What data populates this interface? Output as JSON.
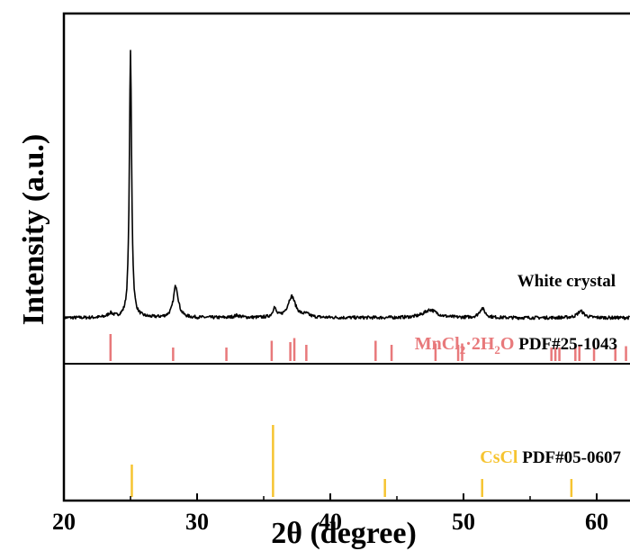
{
  "chart_data": {
    "type": "line",
    "xlabel": "2θ (degree)",
    "ylabel": "Intensity (a.u.)",
    "xlim": [
      20,
      62.5
    ],
    "x_ticks": [
      20,
      30,
      40,
      50,
      60
    ],
    "x_tick_labels": [
      "20",
      "30",
      "40",
      "50",
      "60"
    ],
    "grid": false,
    "series": [
      {
        "name": "White crystal",
        "baseline": 0.05,
        "noise": 0.006,
        "peaks": [
          {
            "x": 23.5,
            "h": 0.015,
            "w": 0.25
          },
          {
            "x": 25.0,
            "h": 1.0,
            "w": 0.1
          },
          {
            "x": 28.4,
            "h": 0.12,
            "w": 0.22
          },
          {
            "x": 33.0,
            "h": 0.008,
            "w": 0.3
          },
          {
            "x": 35.8,
            "h": 0.035,
            "w": 0.15
          },
          {
            "x": 37.1,
            "h": 0.08,
            "w": 0.35
          },
          {
            "x": 38.2,
            "h": 0.01,
            "w": 0.3
          },
          {
            "x": 47.5,
            "h": 0.03,
            "w": 0.6
          },
          {
            "x": 51.4,
            "h": 0.035,
            "w": 0.25
          },
          {
            "x": 58.8,
            "h": 0.025,
            "w": 0.3
          }
        ]
      }
    ],
    "references": [
      {
        "name_parts": [
          {
            "text": "MnCl",
            "sub": false
          },
          {
            "text": "2",
            "sub": true
          },
          {
            "text": "·2H",
            "sub": false
          },
          {
            "text": "2",
            "sub": true
          },
          {
            "text": "O",
            "sub": false
          }
        ],
        "pdf": "PDF#25-1043",
        "color": "#e8797b",
        "lines": [
          {
            "x": 23.5,
            "h": 1.0
          },
          {
            "x": 28.2,
            "h": 0.5
          },
          {
            "x": 32.2,
            "h": 0.5
          },
          {
            "x": 35.6,
            "h": 0.75
          },
          {
            "x": 37.0,
            "h": 0.7
          },
          {
            "x": 37.3,
            "h": 0.85
          },
          {
            "x": 38.2,
            "h": 0.6
          },
          {
            "x": 43.4,
            "h": 0.75
          },
          {
            "x": 44.6,
            "h": 0.6
          },
          {
            "x": 47.9,
            "h": 0.65
          },
          {
            "x": 49.6,
            "h": 0.6
          },
          {
            "x": 49.9,
            "h": 0.65
          },
          {
            "x": 56.6,
            "h": 0.5
          },
          {
            "x": 56.9,
            "h": 0.5
          },
          {
            "x": 57.2,
            "h": 0.5
          },
          {
            "x": 58.4,
            "h": 0.55
          },
          {
            "x": 58.7,
            "h": 0.55
          },
          {
            "x": 59.8,
            "h": 0.55
          },
          {
            "x": 61.4,
            "h": 0.5
          },
          {
            "x": 62.2,
            "h": 0.55
          }
        ]
      },
      {
        "name_parts": [
          {
            "text": "CsCl",
            "sub": false
          }
        ],
        "pdf": "PDF#05-0607",
        "color": "#f6c431",
        "lines": [
          {
            "x": 25.1,
            "h": 0.45
          },
          {
            "x": 35.7,
            "h": 1.0
          },
          {
            "x": 44.1,
            "h": 0.25
          },
          {
            "x": 51.4,
            "h": 0.25
          },
          {
            "x": 58.1,
            "h": 0.25
          }
        ]
      }
    ]
  }
}
